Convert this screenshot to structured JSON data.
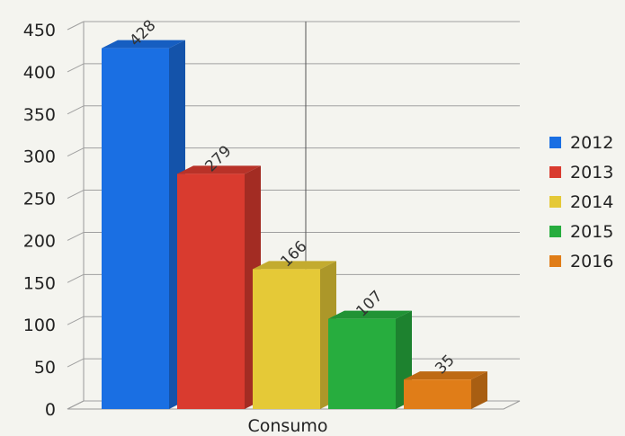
{
  "chart_data": {
    "type": "bar",
    "title": "",
    "xlabel": "",
    "ylabel": "",
    "categories": [
      "Consumo"
    ],
    "series": [
      {
        "name": "2012",
        "values": [
          428
        ],
        "color": "#1a6fe3"
      },
      {
        "name": "2013",
        "values": [
          279
        ],
        "color": "#d93b2f"
      },
      {
        "name": "2014",
        "values": [
          166
        ],
        "color": "#e5c937"
      },
      {
        "name": "2015",
        "values": [
          107
        ],
        "color": "#27ad3e"
      },
      {
        "name": "2016",
        "values": [
          35
        ],
        "color": "#e07d18"
      }
    ],
    "ylim": [
      0,
      450
    ],
    "yticks": [
      0,
      50,
      100,
      150,
      200,
      250,
      300,
      350,
      400,
      450
    ],
    "grid": true,
    "legend_position": "right",
    "style": "3d"
  }
}
